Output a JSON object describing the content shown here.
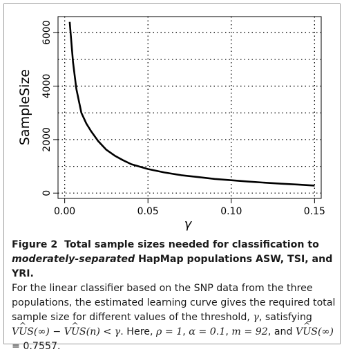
{
  "chart_data": {
    "type": "line",
    "xlabel": "γ",
    "ylabel": "SampleSize",
    "xlim": [
      -0.004,
      0.154
    ],
    "ylim": [
      -200,
      6600
    ],
    "x_ticks": [
      "0.00",
      "0.05",
      "0.10",
      "0.15"
    ],
    "x_tick_values": [
      0.0,
      0.05,
      0.1,
      0.15
    ],
    "y_ticks": [
      "0",
      "2000",
      "4000",
      "6000"
    ],
    "y_tick_values": [
      0,
      2000,
      4000,
      6000
    ],
    "grid": true,
    "grid_style": "dotted",
    "series": [
      {
        "x": [
          0.003,
          0.005,
          0.007,
          0.01,
          0.013,
          0.016,
          0.02,
          0.025,
          0.03,
          0.035,
          0.04,
          0.05,
          0.06,
          0.07,
          0.08,
          0.09,
          0.1,
          0.11,
          0.12,
          0.13,
          0.14,
          0.15
        ],
        "y": [
          6400,
          4900,
          3900,
          3000,
          2600,
          2300,
          1950,
          1620,
          1400,
          1230,
          1080,
          900,
          770,
          670,
          600,
          530,
          480,
          430,
          390,
          350,
          320,
          280
        ],
        "color": "#000000"
      }
    ]
  },
  "caption": {
    "figure_label": "Figure 2",
    "title_part1": "Total sample sizes needed for classification to",
    "title_italic": "moderately-separated",
    "title_part2": "HapMap populations ASW, TSI, and YRI.",
    "body_text": "For the linear classifier based on the SNP data from the three populations, the estimated learning curve gives the required total sample size for different values of the threshold,",
    "gamma": "γ",
    "satisfying": ", satisfying",
    "vus": "VUS",
    "inf": "(∞)",
    "minus": "−",
    "n": "(n)",
    "lt": "<",
    "here": ". Here,",
    "rho": "ρ = 1",
    "alpha": "α = 0.1",
    "m": "m = 92",
    "and": ", and",
    "vus_value": "= 0.7557."
  }
}
